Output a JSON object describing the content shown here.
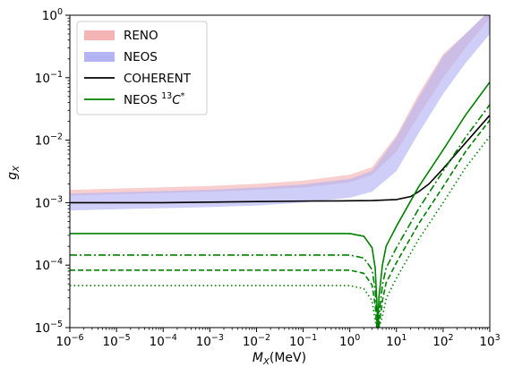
{
  "chart_data": {
    "type": "line",
    "title": "",
    "xlabel": "M_X(MeV)",
    "ylabel": "g_X",
    "x_scale": "log",
    "y_scale": "log",
    "xlim": [
      1e-06,
      1000
    ],
    "ylim": [
      1e-05,
      1
    ],
    "x_ticks": [
      1e-06,
      1e-05,
      0.0001,
      0.001,
      0.01,
      0.1,
      1,
      10,
      100,
      1000
    ],
    "y_ticks": [
      1e-05,
      0.0001,
      0.001,
      0.01,
      0.1,
      1
    ],
    "grid": false,
    "legend": {
      "position": "top-left",
      "entries": [
        {
          "label": "RENO",
          "kind": "band",
          "color": "#f4b4b4"
        },
        {
          "label": "NEOS",
          "kind": "band",
          "color": "#b4b4f4"
        },
        {
          "label": "COHERENT",
          "kind": "line",
          "color": "#000000"
        },
        {
          "label": "NEOS ",
          "sup": "13",
          "label_tail": "C*",
          "kind": "line",
          "color": "#008000"
        }
      ]
    },
    "bands": [
      {
        "name": "RENO",
        "color": "#f4b4b4",
        "opacity": 0.65,
        "x": [
          1e-06,
          0.001,
          0.01,
          0.1,
          1,
          3,
          10,
          30,
          100,
          300,
          1000
        ],
        "lower": [
          0.0013,
          0.0015,
          0.0016,
          0.00175,
          0.0021,
          0.0028,
          0.0065,
          0.025,
          0.1,
          0.3,
          0.9
        ],
        "upper": [
          0.0016,
          0.00185,
          0.002,
          0.00225,
          0.0028,
          0.0037,
          0.012,
          0.055,
          0.24,
          0.5,
          1.2
        ]
      },
      {
        "name": "NEOS",
        "color": "#b4b4f4",
        "opacity": 0.65,
        "x": [
          1e-06,
          0.001,
          0.01,
          0.1,
          1,
          3,
          10,
          30,
          100,
          300,
          1000
        ],
        "lower": [
          0.00075,
          0.00085,
          0.0009,
          0.001,
          0.0012,
          0.0015,
          0.0032,
          0.013,
          0.055,
          0.17,
          0.5
        ],
        "upper": [
          0.0014,
          0.0016,
          0.00175,
          0.00195,
          0.0024,
          0.0032,
          0.011,
          0.048,
          0.22,
          0.5,
          1.2
        ]
      }
    ],
    "series": [
      {
        "name": "COHERENT",
        "color": "#000000",
        "dash": "solid",
        "x": [
          1e-06,
          1e-05,
          0.0001,
          0.001,
          0.01,
          0.1,
          1,
          3,
          10,
          20,
          30,
          50,
          100,
          300,
          1000
        ],
        "y": [
          0.001,
          0.001,
          0.001,
          0.00102,
          0.00104,
          0.00106,
          0.00107,
          0.00108,
          0.00112,
          0.00125,
          0.0015,
          0.002,
          0.0035,
          0.009,
          0.025
        ]
      },
      {
        "name": "NEOS 13C* (solid)",
        "color": "#008000",
        "dash": "solid",
        "x": [
          1e-06,
          1,
          2,
          3,
          3.5,
          3.8,
          4,
          4.2,
          5,
          6,
          10,
          30,
          100,
          300,
          1000
        ],
        "y": [
          0.00032,
          0.00032,
          0.00029,
          0.00019,
          9e-05,
          2.5e-05,
          1e-05,
          3e-05,
          0.0001,
          0.0002,
          0.00042,
          0.0018,
          0.007,
          0.025,
          0.085
        ]
      },
      {
        "name": "NEOS 13C* (dash-dot)",
        "color": "#008000",
        "dash": "8,3,2,3",
        "x": [
          1e-06,
          1,
          2,
          3,
          3.5,
          3.8,
          4,
          4.2,
          5,
          6,
          10,
          30,
          100,
          300,
          1000
        ],
        "y": [
          0.000145,
          0.000145,
          0.00013,
          8.5e-05,
          4e-05,
          1.3e-05,
          1e-05,
          1.5e-05,
          4.8e-05,
          9e-05,
          0.00019,
          0.0008,
          0.0032,
          0.011,
          0.037
        ]
      },
      {
        "name": "NEOS 13C* (dashed)",
        "color": "#008000",
        "dash": "6,3",
        "x": [
          1e-06,
          1,
          2,
          3,
          3.5,
          3.8,
          4,
          4.2,
          5,
          6,
          10,
          30,
          100,
          300,
          1000
        ],
        "y": [
          8.3e-05,
          8.3e-05,
          7.4e-05,
          4.8e-05,
          2.3e-05,
          1e-05,
          1e-05,
          1e-05,
          2.7e-05,
          5.2e-05,
          0.00011,
          0.00046,
          0.0018,
          0.0065,
          0.021
        ]
      },
      {
        "name": "NEOS 13C* (dotted)",
        "color": "#008000",
        "dash": "1.5,3",
        "x": [
          1e-06,
          1,
          2,
          3,
          3.5,
          3.8,
          4,
          4.2,
          5,
          6,
          10,
          30,
          100,
          300,
          1000
        ],
        "y": [
          4.7e-05,
          4.7e-05,
          4.2e-05,
          2.7e-05,
          1.3e-05,
          1e-05,
          1e-05,
          1e-05,
          1.5e-05,
          2.9e-05,
          6.2e-05,
          0.00026,
          0.001,
          0.0036,
          0.0115
        ]
      }
    ]
  }
}
